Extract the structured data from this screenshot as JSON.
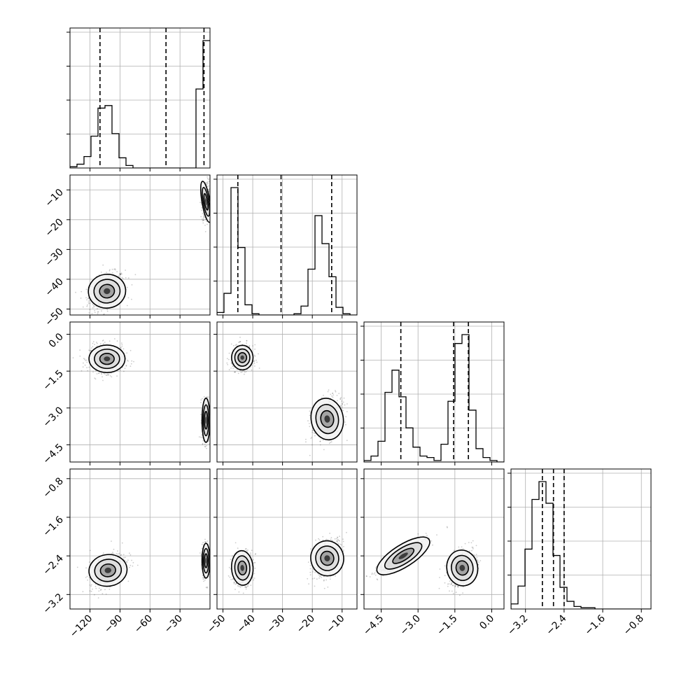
{
  "chart_data": {
    "type": "corner",
    "grid": true,
    "colors": {
      "line": "#000000",
      "grid": "#b0b0b0",
      "points": "#333333"
    },
    "variables": [
      {
        "range": [
          -140,
          0
        ],
        "ticks": [
          -120,
          -90,
          -60,
          -30
        ],
        "tick_labels": [
          "−120",
          "−90",
          "−60",
          "−30"
        ],
        "quantiles": [
          -110,
          -44,
          -6
        ]
      },
      {
        "range": [
          -52,
          -5
        ],
        "ticks": [
          -50,
          -40,
          -30,
          -20,
          -10
        ],
        "tick_labels": [
          "−50",
          "−40",
          "−30",
          "−20",
          "−10"
        ],
        "quantiles": [
          -45,
          -30.5,
          -13.5
        ]
      },
      {
        "range": [
          -5.2,
          0.5
        ],
        "ticks": [
          -4.5,
          -3.0,
          -1.5,
          0.0
        ],
        "tick_labels": [
          "−4.5",
          "−3.0",
          "−1.5",
          "0.0"
        ],
        "quantiles": [
          -3.7,
          -1.55,
          -0.95
        ]
      },
      {
        "range": [
          -3.5,
          -0.6
        ],
        "ticks": [
          -3.2,
          -2.4,
          -1.6,
          -0.8
        ],
        "tick_labels": [
          "−3.2",
          "−2.4",
          "−1.6",
          "−0.8"
        ],
        "quantiles": [
          -2.85,
          -2.62,
          -2.4
        ]
      }
    ],
    "histograms": [
      {
        "variable": 0,
        "bin_edges": [
          -140,
          -133,
          -126,
          -119,
          -112,
          -105,
          -98,
          -91,
          -84,
          -77,
          -70,
          -63,
          -56,
          -49,
          -42,
          -35,
          -28,
          -21,
          -14,
          -7,
          0
        ],
        "counts": [
          0.01,
          0.03,
          0.09,
          0.25,
          0.47,
          0.49,
          0.27,
          0.08,
          0.02,
          0,
          0,
          0,
          0,
          0,
          0,
          0,
          0,
          0,
          0.62,
          1.0
        ]
      },
      {
        "variable": 1,
        "bin_edges": [
          -52,
          -49.65,
          -47.3,
          -44.95,
          -42.6,
          -40.25,
          -37.9,
          -35.55,
          -33.2,
          -30.85,
          -28.5,
          -26.15,
          -23.8,
          -21.45,
          -19.1,
          -16.75,
          -14.4,
          -12.05,
          -9.7,
          -7.35,
          -5
        ],
        "counts": [
          0.02,
          0.17,
          1.0,
          0.53,
          0.08,
          0.01,
          0,
          0,
          0,
          0,
          0,
          0.01,
          0.07,
          0.36,
          0.78,
          0.56,
          0.3,
          0.06,
          0.01,
          0
        ]
      },
      {
        "variable": 2,
        "bin_edges": [
          -5.2,
          -4.915,
          -4.63,
          -4.345,
          -4.06,
          -3.775,
          -3.49,
          -3.205,
          -2.92,
          -2.635,
          -2.35,
          -2.065,
          -1.78,
          -1.495,
          -1.21,
          -0.925,
          -0.64,
          -0.355,
          -0.07,
          0.215,
          0.5
        ],
        "counts": [
          0.01,
          0.04,
          0.14,
          0.47,
          0.62,
          0.44,
          0.23,
          0.1,
          0.04,
          0.03,
          0.01,
          0.12,
          0.41,
          0.8,
          0.86,
          0.35,
          0.09,
          0.03,
          0.01,
          0
        ]
      },
      {
        "variable": 3,
        "bin_edges": [
          -3.5,
          -3.355,
          -3.21,
          -3.065,
          -2.92,
          -2.775,
          -2.63,
          -2.485,
          -2.34,
          -2.195,
          -2.05,
          -1.905,
          -1.76,
          -1.615,
          -1.47,
          -1.325,
          -1.18,
          -1.035,
          -0.89,
          -0.745,
          -0.6
        ],
        "counts": [
          0.04,
          0.18,
          0.47,
          0.86,
          1.0,
          0.83,
          0.42,
          0.17,
          0.06,
          0.02,
          0.01,
          0.01,
          0,
          0,
          0,
          0,
          0,
          0,
          0,
          0
        ]
      }
    ],
    "joint_modes": [
      {
        "x_var": 0,
        "y_var": 1,
        "modes": [
          {
            "cx": -103,
            "cy": -44,
            "sx": 9,
            "sy": 3,
            "rho": 0.35,
            "weight": 0.6
          },
          {
            "cx": -4,
            "cy": -14,
            "sx": 2,
            "sy": 3.5,
            "rho": 0.1,
            "weight": 0.4
          }
        ]
      },
      {
        "x_var": 0,
        "y_var": 2,
        "modes": [
          {
            "cx": -103,
            "cy": -1.0,
            "sx": 9,
            "sy": 0.28,
            "rho": 0.0,
            "weight": 0.6
          },
          {
            "cx": -4,
            "cy": -3.5,
            "sx": 2,
            "sy": 0.45,
            "rho": 0.0,
            "weight": 0.4
          }
        ]
      },
      {
        "x_var": 0,
        "y_var": 3,
        "modes": [
          {
            "cx": -102,
            "cy": -2.7,
            "sx": 9,
            "sy": 0.18,
            "rho": 0.45,
            "weight": 0.6
          },
          {
            "cx": -4,
            "cy": -2.5,
            "sx": 2,
            "sy": 0.18,
            "rho": 0.0,
            "weight": 0.4
          }
        ]
      },
      {
        "x_var": 1,
        "y_var": 2,
        "modes": [
          {
            "cx": -43.5,
            "cy": -0.95,
            "sx": 1.8,
            "sy": 0.25,
            "rho": 0.0,
            "weight": 0.55
          },
          {
            "cx": -15,
            "cy": -3.45,
            "sx": 2.6,
            "sy": 0.45,
            "rho": 0.35,
            "weight": 0.45
          }
        ]
      },
      {
        "x_var": 1,
        "y_var": 3,
        "modes": [
          {
            "cx": -43.5,
            "cy": -2.65,
            "sx": 1.8,
            "sy": 0.18,
            "rho": 0.1,
            "weight": 0.55
          },
          {
            "cx": -15,
            "cy": -2.45,
            "sx": 2.6,
            "sy": 0.2,
            "rho": 0.45,
            "weight": 0.45
          }
        ]
      },
      {
        "x_var": 2,
        "y_var": 3,
        "modes": [
          {
            "cx": -3.6,
            "cy": -2.4,
            "sx": 0.5,
            "sy": 0.18,
            "rho": 0.9,
            "weight": 0.55
          },
          {
            "cx": -1.2,
            "cy": -2.65,
            "sx": 0.3,
            "sy": 0.2,
            "rho": 0.4,
            "weight": 0.45
          }
        ]
      }
    ]
  }
}
